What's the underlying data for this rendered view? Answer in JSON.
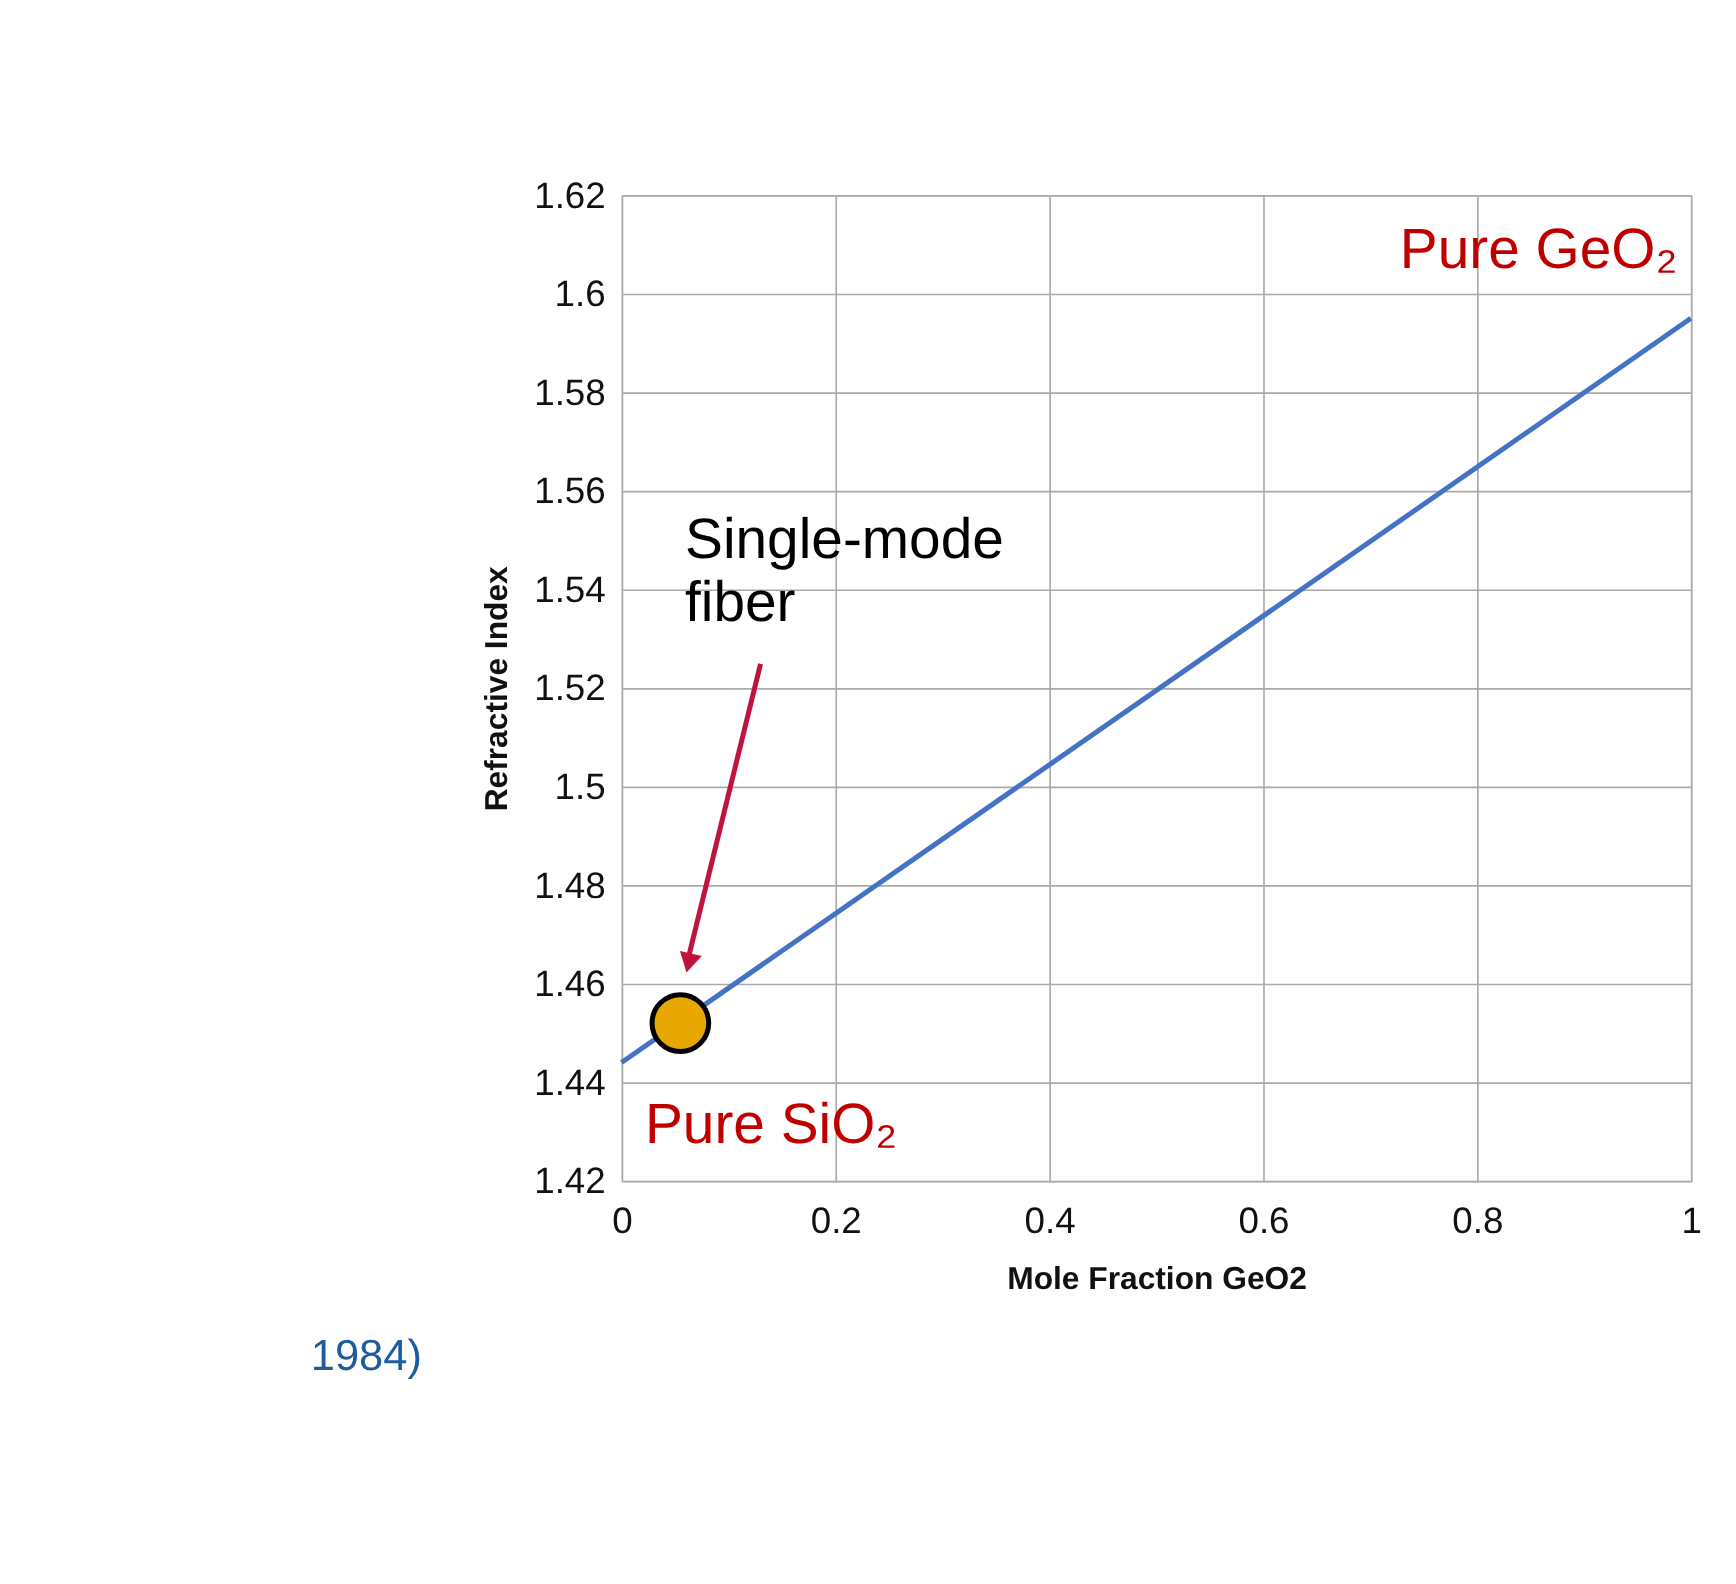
{
  "chart_data": {
    "type": "line",
    "xlabel": "Mole Fraction GeO2",
    "ylabel": "Refractive Index",
    "series": [
      {
        "color": "#4472c4",
        "x": [
          0,
          1
        ],
        "values": [
          1.444,
          1.595
        ]
      },
      {
        "type": "scatter",
        "color": "#e8a800",
        "x": [
          0.055
        ],
        "values": [
          1.452
        ],
        "marker": "circle"
      }
    ],
    "xlim": [
      0,
      1
    ],
    "xticks": [
      0,
      0.2,
      0.4,
      0.6,
      0.8,
      1
    ],
    "ylim": [
      1.42,
      1.62
    ],
    "yticks": [
      1.42,
      1.44,
      1.46,
      1.48,
      1.5,
      1.52,
      1.54,
      1.56,
      1.58,
      1.6,
      1.62
    ],
    "grid": true,
    "annotations": [
      {
        "text": "Pure GeO₂",
        "x": 1,
        "y": 1.595
      },
      {
        "text": "Pure SiO₂",
        "x": 0,
        "y": 1.444
      },
      "Single-mode fiber",
      "1984)"
    ]
  }
}
